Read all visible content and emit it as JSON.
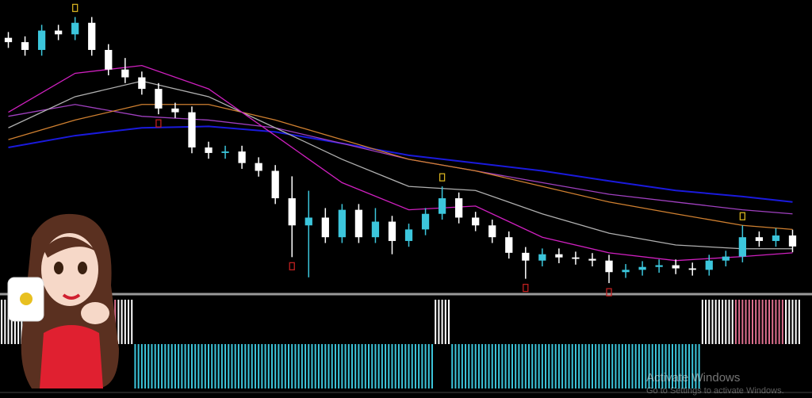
{
  "chart_data": {
    "type": "candlestick",
    "xlim": [
      -0.5,
      47.5
    ],
    "ylim": [
      0,
      100
    ],
    "up_color": "#3cc6dc",
    "down_color": "#ffffff",
    "open": [
      88.0,
      86.5,
      83.8,
      90.5,
      89.2,
      93.2,
      83.8,
      77.0,
      74.3,
      70.3,
      63.5,
      62.2,
      50.0,
      48.1,
      48.6,
      44.6,
      41.9,
      32.4,
      23.0,
      25.7,
      18.9,
      28.4,
      18.9,
      24.3,
      17.6,
      21.6,
      27.0,
      32.4,
      25.7,
      23.0,
      18.9,
      13.5,
      10.8,
      13.0,
      11.9,
      11.4,
      10.8,
      6.8,
      7.6,
      8.6,
      9.2,
      8.1,
      7.6,
      10.8,
      12.2,
      18.9,
      17.6,
      19.5
    ],
    "high": [
      90.0,
      88.5,
      92.5,
      92.5,
      95.2,
      95.2,
      85.8,
      81.0,
      76.3,
      72.3,
      65.5,
      64.2,
      52.0,
      50.6,
      50.6,
      46.6,
      43.9,
      40.0,
      35.0,
      29.0,
      30.4,
      30.4,
      29.0,
      26.3,
      23.6,
      29.0,
      36.5,
      34.4,
      27.7,
      25.0,
      20.9,
      15.5,
      15.0,
      15.0,
      13.9,
      13.4,
      12.8,
      9.6,
      10.6,
      11.2,
      11.2,
      10.1,
      12.8,
      14.2,
      23.0,
      20.9,
      22.0,
      21.5
    ],
    "low": [
      84.5,
      81.8,
      81.8,
      87.2,
      87.2,
      81.8,
      75.0,
      72.3,
      68.3,
      61.5,
      60.2,
      48.0,
      46.1,
      46.1,
      42.6,
      39.9,
      30.4,
      12.0,
      5.0,
      16.9,
      16.9,
      16.9,
      16.9,
      13.0,
      15.6,
      19.6,
      25.0,
      23.7,
      21.0,
      16.9,
      11.5,
      4.5,
      8.8,
      9.9,
      9.4,
      8.8,
      3.0,
      4.8,
      5.6,
      6.6,
      6.1,
      5.6,
      5.6,
      8.8,
      10.2,
      15.6,
      15.6,
      13.7
    ],
    "close": [
      86.5,
      83.8,
      90.5,
      89.2,
      93.2,
      83.8,
      77.0,
      74.3,
      70.3,
      63.5,
      62.2,
      50.0,
      48.1,
      48.6,
      44.6,
      41.9,
      32.4,
      23.0,
      25.7,
      18.9,
      28.4,
      18.9,
      24.3,
      17.6,
      21.6,
      27.0,
      32.4,
      25.7,
      23.0,
      18.9,
      13.5,
      10.8,
      13.0,
      11.9,
      11.4,
      10.8,
      6.8,
      7.6,
      8.6,
      9.2,
      8.1,
      7.6,
      10.8,
      12.2,
      18.9,
      17.6,
      19.5,
      15.7
    ],
    "ma_x": [
      0,
      4,
      8,
      12,
      16,
      20,
      24,
      28,
      32,
      36,
      40,
      44,
      47
    ],
    "series": [
      {
        "color": "#1a1adc",
        "values": [
          50.0,
          54.1,
          56.8,
          57.3,
          55.4,
          51.4,
          47.3,
          44.6,
          41.9,
          38.4,
          35.1,
          33.0,
          31.1
        ]
      },
      {
        "color": "#a040c0",
        "values": [
          60.8,
          64.9,
          60.8,
          59.5,
          56.8,
          51.4,
          45.9,
          41.9,
          37.8,
          33.8,
          31.1,
          28.4,
          27.0
        ]
      },
      {
        "color": "#d08030",
        "values": [
          52.7,
          59.5,
          64.9,
          64.9,
          59.5,
          52.7,
          45.9,
          41.9,
          36.5,
          31.1,
          27.0,
          23.0,
          21.6
        ]
      },
      {
        "color": "#b0b0b0",
        "values": [
          56.8,
          67.6,
          73.0,
          67.6,
          56.8,
          45.9,
          36.5,
          35.1,
          27.0,
          20.3,
          16.2,
          14.9,
          14.9
        ]
      },
      {
        "color": "#d020c0",
        "values": [
          62.2,
          75.7,
          78.4,
          70.3,
          54.1,
          37.8,
          28.4,
          29.7,
          18.9,
          13.5,
          10.8,
          12.2,
          13.5
        ]
      }
    ],
    "fractal_up": [
      4,
      26,
      44
    ],
    "fractal_down": [
      9,
      17,
      31,
      36
    ],
    "fractal_up_color": "#d4b020",
    "fractal_down_color": "#c02020",
    "histogram": {
      "ylim": [
        -1,
        1
      ],
      "values": [
        1,
        1,
        1,
        1,
        1,
        1,
        1,
        1,
        -1,
        -1,
        -1,
        -1,
        -1,
        -1,
        -1,
        -1,
        -1,
        -1,
        -1,
        -1,
        -1,
        -1,
        -1,
        -1,
        -1,
        -1,
        1,
        -1,
        -1,
        -1,
        -1,
        -1,
        -1,
        -1,
        -1,
        -1,
        -1,
        -1,
        -1,
        -1,
        -1,
        -1,
        1,
        1,
        1,
        1,
        1,
        1
      ],
      "colors": [
        "#ffffff",
        "#ffffff",
        "#ffffff",
        "#ffffff",
        "#ffffff",
        "#ffffff",
        "#e07090",
        "#ffffff",
        "#3cc6dc",
        "#3cc6dc",
        "#3cc6dc",
        "#3cc6dc",
        "#3cc6dc",
        "#3cc6dc",
        "#3cc6dc",
        "#3cc6dc",
        "#3cc6dc",
        "#3cc6dc",
        "#3cc6dc",
        "#3cc6dc",
        "#3cc6dc",
        "#3cc6dc",
        "#3cc6dc",
        "#3cc6dc",
        "#3cc6dc",
        "#3cc6dc",
        "#ffffff",
        "#3cc6dc",
        "#3cc6dc",
        "#3cc6dc",
        "#3cc6dc",
        "#3cc6dc",
        "#3cc6dc",
        "#3cc6dc",
        "#3cc6dc",
        "#3cc6dc",
        "#3cc6dc",
        "#3cc6dc",
        "#3cc6dc",
        "#3cc6dc",
        "#3cc6dc",
        "#3cc6dc",
        "#ffffff",
        "#ffffff",
        "#e07090",
        "#e07090",
        "#e07090",
        "#ffffff"
      ]
    }
  },
  "watermark": {
    "title": "Activate Windows",
    "subtitle": "Go to Settings to activate Windows."
  }
}
